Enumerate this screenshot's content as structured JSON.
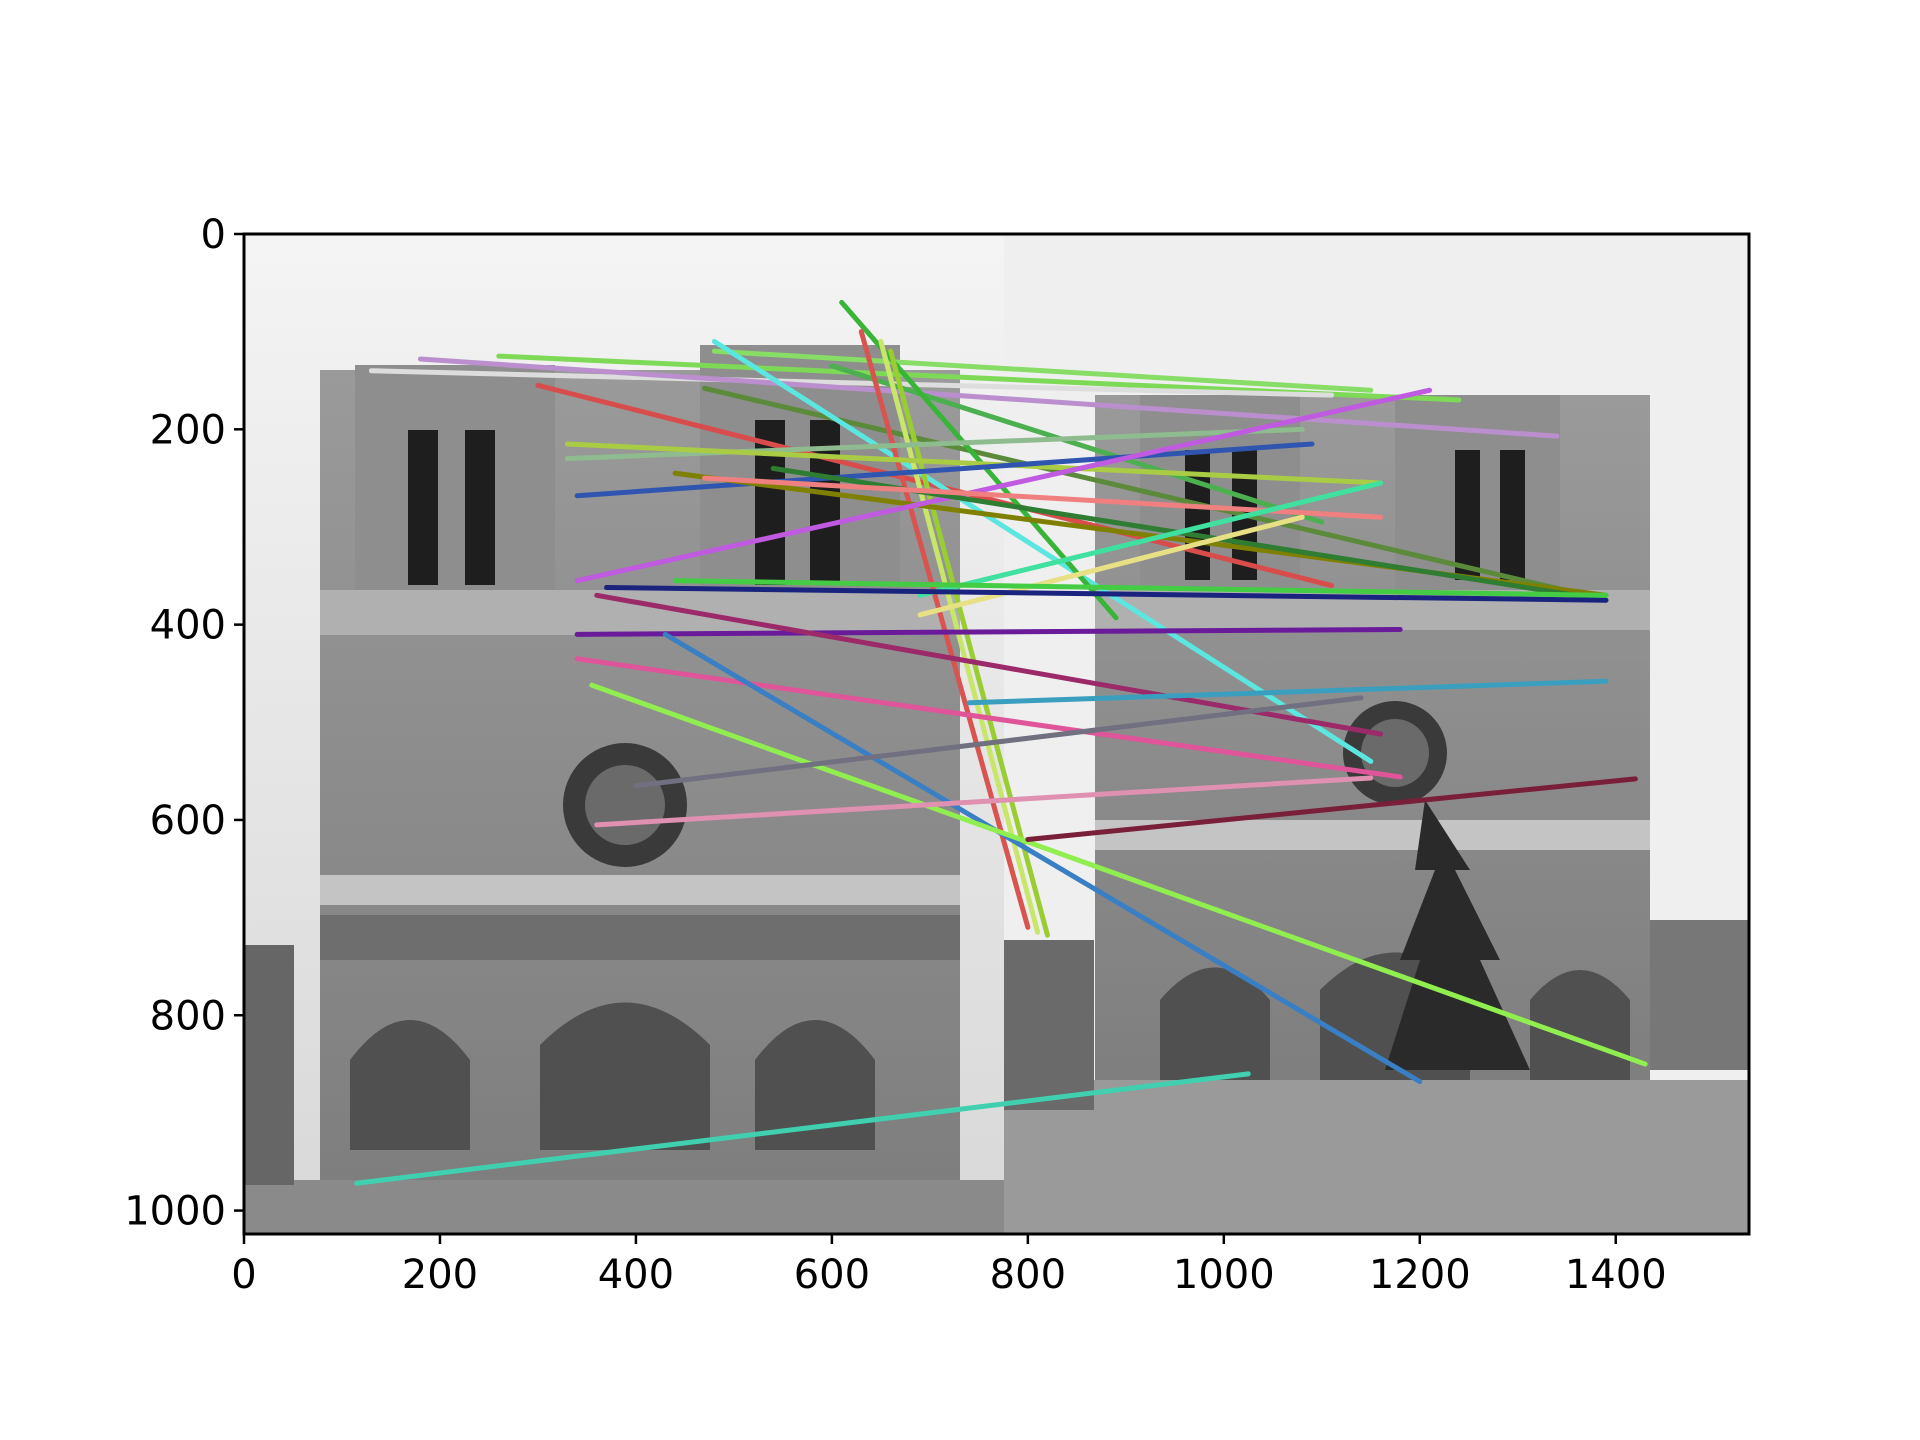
{
  "chart_data": {
    "type": "line",
    "title": "",
    "xlabel": "",
    "ylabel": "",
    "xlim": [
      0,
      1536
    ],
    "ylim": [
      1024,
      0
    ],
    "y_inverted": true,
    "grid": false,
    "legend": "none",
    "x_ticks": [
      "0",
      "200",
      "400",
      "600",
      "800",
      "1000",
      "1200",
      "1400"
    ],
    "y_ticks": [
      "0",
      "200",
      "400",
      "600",
      "800",
      "1000"
    ],
    "background_image": "grayscale side-by-side photographs of the Notre-Dame de Paris facade",
    "series": [
      {
        "color": "#7ed957",
        "x": [
          260,
          1240
        ],
        "y": [
          125,
          170
        ]
      },
      {
        "color": "#88dd66",
        "x": [
          480,
          1150
        ],
        "y": [
          120,
          160
        ]
      },
      {
        "color": "#dddddd",
        "x": [
          130,
          1110
        ],
        "y": [
          140,
          165
        ]
      },
      {
        "color": "#bb8fce",
        "x": [
          180,
          1340
        ],
        "y": [
          128,
          207
        ]
      },
      {
        "color": "#d94c4c",
        "x": [
          300,
          1110
        ],
        "y": [
          155,
          360
        ]
      },
      {
        "color": "#5a8a3a",
        "x": [
          470,
          1370
        ],
        "y": [
          158,
          370
        ]
      },
      {
        "color": "#4caf50",
        "x": [
          600,
          1100
        ],
        "y": [
          135,
          295
        ]
      },
      {
        "color": "#5ce6e0",
        "x": [
          480,
          1150
        ],
        "y": [
          110,
          540
        ]
      },
      {
        "color": "#38b538",
        "x": [
          610,
          890
        ],
        "y": [
          70,
          393
        ]
      },
      {
        "color": "#d9534f",
        "x": [
          630,
          800
        ],
        "y": [
          100,
          710
        ]
      },
      {
        "color": "#c8e66a",
        "x": [
          650,
          810
        ],
        "y": [
          110,
          715
        ]
      },
      {
        "color": "#9acd32",
        "x": [
          660,
          820
        ],
        "y": [
          120,
          718
        ]
      },
      {
        "color": "#8fbc8f",
        "x": [
          330,
          1080
        ],
        "y": [
          230,
          200
        ]
      },
      {
        "color": "#aacc44",
        "x": [
          330,
          1160
        ],
        "y": [
          215,
          255
        ]
      },
      {
        "color": "#2f55b0",
        "x": [
          340,
          1090
        ],
        "y": [
          268,
          215
        ]
      },
      {
        "color": "#808000",
        "x": [
          440,
          1390
        ],
        "y": [
          245,
          370
        ]
      },
      {
        "color": "#c05ae0",
        "x": [
          340,
          1210
        ],
        "y": [
          355,
          160
        ]
      },
      {
        "color": "#2e7d32",
        "x": [
          540,
          1390
        ],
        "y": [
          240,
          375
        ]
      },
      {
        "color": "#f08080",
        "x": [
          470,
          1160
        ],
        "y": [
          250,
          290
        ]
      },
      {
        "color": "#e8e085",
        "x": [
          690,
          1080
        ],
        "y": [
          390,
          290
        ]
      },
      {
        "color": "#40e0a0",
        "x": [
          690,
          1160
        ],
        "y": [
          370,
          255
        ]
      },
      {
        "color": "#1a237e",
        "x": [
          370,
          1390
        ],
        "y": [
          362,
          375
        ]
      },
      {
        "color": "#44cc44",
        "x": [
          440,
          1390
        ],
        "y": [
          355,
          370
        ]
      },
      {
        "color": "#6a1b9a",
        "x": [
          340,
          1180
        ],
        "y": [
          410,
          405
        ]
      },
      {
        "color": "#9c2a6a",
        "x": [
          360,
          1160
        ],
        "y": [
          370,
          512
        ]
      },
      {
        "color": "#e0559a",
        "x": [
          340,
          1180
        ],
        "y": [
          435,
          556
        ]
      },
      {
        "color": "#3a7fc4",
        "x": [
          430,
          1200
        ],
        "y": [
          410,
          868
        ]
      },
      {
        "color": "#90ee50",
        "x": [
          355,
          1430
        ],
        "y": [
          462,
          850
        ]
      },
      {
        "color": "#3a9fbf",
        "x": [
          740,
          1390
        ],
        "y": [
          480,
          458
        ]
      },
      {
        "color": "#7a1f3a",
        "x": [
          800,
          1420
        ],
        "y": [
          620,
          558
        ]
      },
      {
        "color": "#e090b0",
        "x": [
          360,
          1150
        ],
        "y": [
          605,
          557
        ]
      },
      {
        "color": "#707080",
        "x": [
          400,
          1140
        ],
        "y": [
          565,
          475
        ]
      },
      {
        "color": "#40d0b0",
        "x": [
          115,
          1025
        ],
        "y": [
          972,
          860
        ]
      }
    ]
  }
}
